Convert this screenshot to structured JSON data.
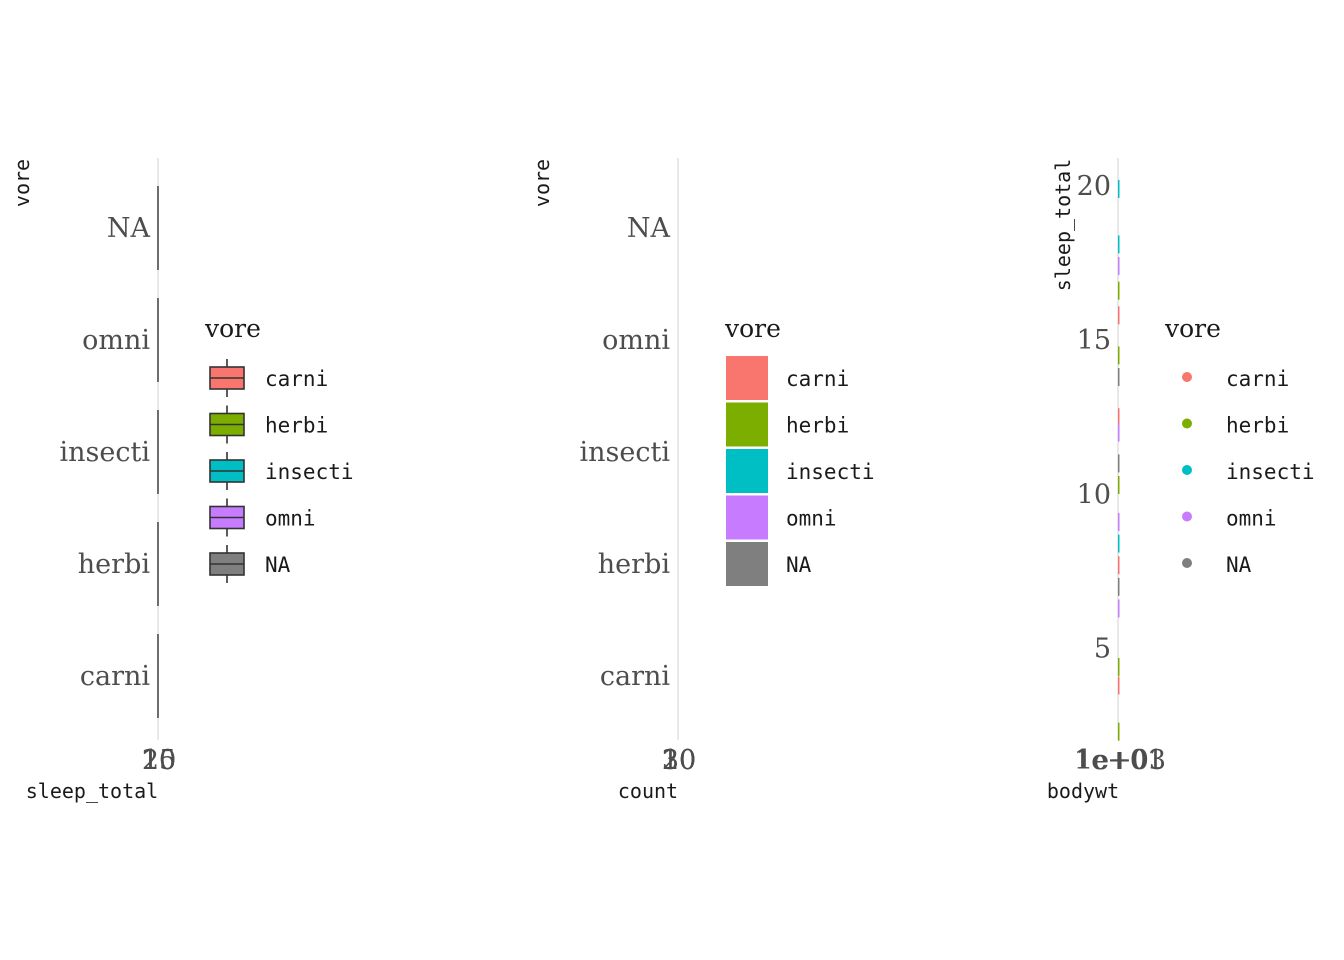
{
  "colors": {
    "carni": "#F8766D",
    "herbi": "#7CAE00",
    "insecti": "#00BFC4",
    "omni": "#C77CFF",
    "NA": "#7F7F7F"
  },
  "chart_data": [
    {
      "type": "boxplot",
      "orientation": "horizontal",
      "categories": [
        "carni",
        "herbi",
        "insecti",
        "omni",
        "NA"
      ],
      "xlabel": "sleep_total",
      "ylabel": "vore",
      "x_ticks": [
        "10",
        "15",
        "20"
      ],
      "legend": {
        "title": "vore",
        "placement": "right",
        "entries": [
          "carni",
          "herbi",
          "insecti",
          "omni",
          "NA"
        ]
      },
      "grid": false
    },
    {
      "type": "bar",
      "orientation": "horizontal",
      "categories": [
        "carni",
        "herbi",
        "insecti",
        "omni",
        "NA"
      ],
      "xlabel": "count",
      "ylabel": "vore",
      "x_ticks": [
        "10",
        "20",
        "30"
      ],
      "legend": {
        "title": "vore",
        "placement": "right",
        "entries": [
          "carni",
          "herbi",
          "insecti",
          "omni",
          "NA"
        ]
      },
      "grid": false
    },
    {
      "type": "scatter",
      "xlabel": "bodywt",
      "ylabel": "sleep_total",
      "x_ticks": [
        "1e+01",
        "1e+03"
      ],
      "y_ticks": [
        5,
        10,
        15,
        20
      ],
      "ylim": [
        2,
        21
      ],
      "points": [
        {
          "vore": "carni",
          "y": 15.8
        },
        {
          "vore": "carni",
          "y": 12.5
        },
        {
          "vore": "carni",
          "y": 7.7
        },
        {
          "vore": "carni",
          "y": 3.8
        },
        {
          "vore": "herbi",
          "y": 16.6
        },
        {
          "vore": "herbi",
          "y": 14.5
        },
        {
          "vore": "herbi",
          "y": 10.3
        },
        {
          "vore": "herbi",
          "y": 4.4
        },
        {
          "vore": "herbi",
          "y": 2.3
        },
        {
          "vore": "insecti",
          "y": 19.9
        },
        {
          "vore": "insecti",
          "y": 18.1
        },
        {
          "vore": "insecti",
          "y": 8.4
        },
        {
          "vore": "omni",
          "y": 17.4
        },
        {
          "vore": "omni",
          "y": 12.0
        },
        {
          "vore": "omni",
          "y": 9.1
        },
        {
          "vore": "omni",
          "y": 6.3
        },
        {
          "vore": "NA",
          "y": 13.8
        },
        {
          "vore": "NA",
          "y": 11.0
        },
        {
          "vore": "NA",
          "y": 7.0
        }
      ],
      "legend": {
        "title": "vore",
        "placement": "right",
        "entries": [
          "carni",
          "herbi",
          "insecti",
          "omni",
          "NA"
        ]
      },
      "grid": false
    }
  ]
}
